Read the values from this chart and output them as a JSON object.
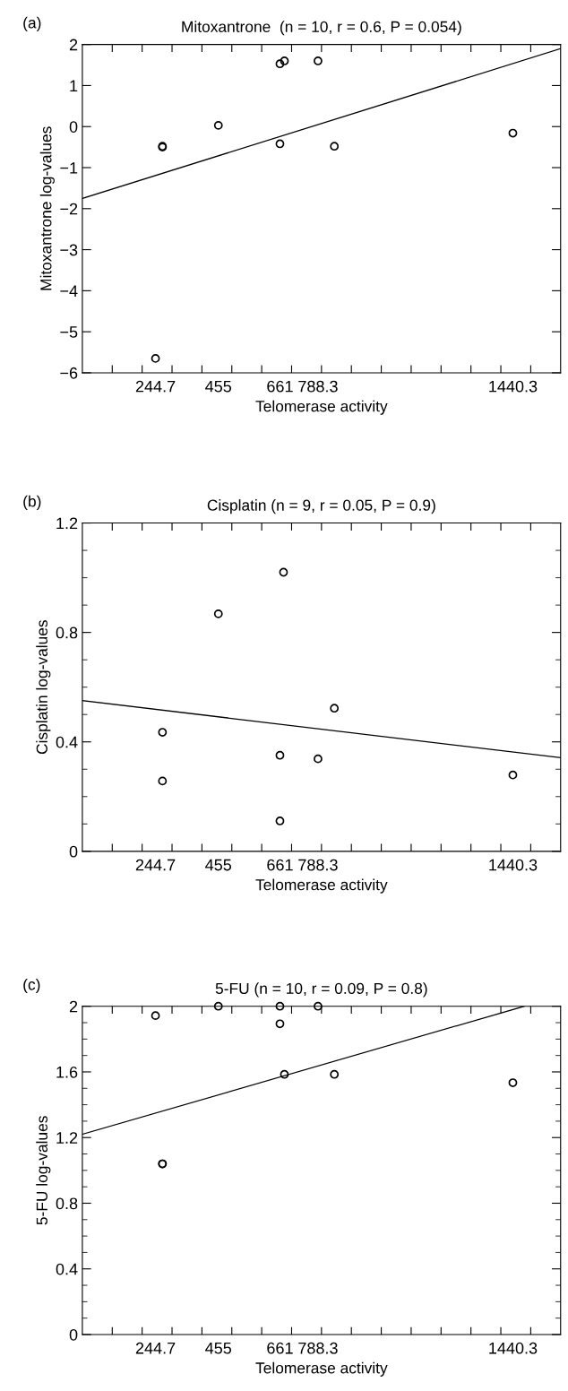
{
  "chart_data": [
    {
      "type": "scatter",
      "title": "Mitoxantrone  (n = 10, r = 0.6, P = 0.054)",
      "xlabel": "Telomerase activity",
      "ylabel": "Mitoxantrone log-values",
      "annotations": [
        "(a)"
      ],
      "xlim": [
        0,
        1600
      ],
      "ylim": [
        -6,
        2
      ],
      "xticks": [
        {
          "value": 100,
          "label": null
        },
        {
          "value": 200,
          "label": null
        },
        {
          "value": 300,
          "label": null
        },
        {
          "value": 400,
          "label": null
        },
        {
          "value": 500,
          "label": null
        },
        {
          "value": 600,
          "label": null
        },
        {
          "value": 700,
          "label": null
        },
        {
          "value": 800,
          "label": null
        },
        {
          "value": 900,
          "label": null
        },
        {
          "value": 1000,
          "label": null
        },
        {
          "value": 1100,
          "label": null
        },
        {
          "value": 1200,
          "label": null
        },
        {
          "value": 1300,
          "label": null
        },
        {
          "value": 1400,
          "label": null
        },
        {
          "value": 1500,
          "label": null
        },
        {
          "value": 244.7,
          "label": "244.7"
        },
        {
          "value": 455,
          "label": "455"
        },
        {
          "value": 661,
          "label": "661"
        },
        {
          "value": 788.3,
          "label": "788.3"
        },
        {
          "value": 1440.3,
          "label": "1440.3"
        }
      ],
      "yticks": [
        {
          "value": -6,
          "label": "−6"
        },
        {
          "value": -5,
          "label": "−5"
        },
        {
          "value": -4,
          "label": "−4"
        },
        {
          "value": -3,
          "label": "−3"
        },
        {
          "value": -2,
          "label": "−2"
        },
        {
          "value": -1,
          "label": "−1"
        },
        0,
        1,
        2
      ],
      "grid": false,
      "legend": false,
      "series": [
        {
          "marker": "circle",
          "color": "#000000",
          "x": [
            244.7,
            268,
            268,
            455,
            661,
            661,
            676,
            788.3,
            843,
            1440.3
          ],
          "values": [
            -5.65,
            -0.5,
            -0.48,
            0.03,
            -0.42,
            1.53,
            1.6,
            1.6,
            -0.48,
            -0.16
          ]
        },
        {
          "type": "line",
          "color": "#000000",
          "x": [
            0,
            1600
          ],
          "values": [
            -1.75,
            1.9
          ]
        }
      ]
    },
    {
      "type": "scatter",
      "title": "Cisplatin (n = 9, r = 0.05, P = 0.9)",
      "xlabel": "Telomerase activity",
      "ylabel": "Cisplatin log-values",
      "annotations": [
        "(b)"
      ],
      "xlim": [
        0,
        1600
      ],
      "ylim": [
        0,
        1.2
      ],
      "xticks": [
        {
          "value": 100,
          "label": null
        },
        {
          "value": 200,
          "label": null
        },
        {
          "value": 300,
          "label": null
        },
        {
          "value": 400,
          "label": null
        },
        {
          "value": 500,
          "label": null
        },
        {
          "value": 600,
          "label": null
        },
        {
          "value": 700,
          "label": null
        },
        {
          "value": 800,
          "label": null
        },
        {
          "value": 900,
          "label": null
        },
        {
          "value": 1000,
          "label": null
        },
        {
          "value": 1100,
          "label": null
        },
        {
          "value": 1200,
          "label": null
        },
        {
          "value": 1300,
          "label": null
        },
        {
          "value": 1400,
          "label": null
        },
        {
          "value": 1500,
          "label": null
        },
        {
          "value": 244.7,
          "label": "244.7"
        },
        {
          "value": 455,
          "label": "455"
        },
        {
          "value": 661,
          "label": "661"
        },
        {
          "value": 788.3,
          "label": "788.3"
        },
        {
          "value": 1440.3,
          "label": "1440.3"
        }
      ],
      "yticks": [
        0,
        {
          "value": 0.1,
          "label": null
        },
        {
          "value": 0.2,
          "label": null
        },
        {
          "value": 0.3,
          "label": null
        },
        0.4,
        {
          "value": 0.5,
          "label": null
        },
        {
          "value": 0.6,
          "label": null
        },
        {
          "value": 0.7,
          "label": null
        },
        0.8,
        {
          "value": 0.9,
          "label": null
        },
        {
          "value": 1.0,
          "label": null
        },
        {
          "value": 1.1,
          "label": null
        },
        1.2
      ],
      "grid": false,
      "legend": false,
      "series": [
        {
          "marker": "circle",
          "color": "#000000",
          "x": [
            268,
            268,
            455,
            673,
            661,
            661,
            788.3,
            843,
            1440.3
          ],
          "values": [
            0.435,
            0.257,
            0.868,
            1.02,
            0.351,
            0.111,
            0.338,
            0.523,
            0.279
          ]
        },
        {
          "type": "line",
          "color": "#000000",
          "x": [
            0,
            1600
          ],
          "values": [
            0.551,
            0.342
          ]
        }
      ]
    },
    {
      "type": "scatter",
      "title": "5-FU (n = 10, r = 0.09, P = 0.8)",
      "xlabel": "Telomerase activity",
      "ylabel": "5-FU log-values",
      "annotations": [
        "(c)"
      ],
      "xlim": [
        0,
        1600
      ],
      "ylim": [
        0,
        2
      ],
      "xticks": [
        {
          "value": 100,
          "label": null
        },
        {
          "value": 200,
          "label": null
        },
        {
          "value": 300,
          "label": null
        },
        {
          "value": 400,
          "label": null
        },
        {
          "value": 500,
          "label": null
        },
        {
          "value": 600,
          "label": null
        },
        {
          "value": 700,
          "label": null
        },
        {
          "value": 800,
          "label": null
        },
        {
          "value": 900,
          "label": null
        },
        {
          "value": 1000,
          "label": null
        },
        {
          "value": 1100,
          "label": null
        },
        {
          "value": 1200,
          "label": null
        },
        {
          "value": 1300,
          "label": null
        },
        {
          "value": 1400,
          "label": null
        },
        {
          "value": 1500,
          "label": null
        },
        {
          "value": 244.7,
          "label": "244.7"
        },
        {
          "value": 455,
          "label": "455"
        },
        {
          "value": 661,
          "label": "661"
        },
        {
          "value": 788.3,
          "label": "788.3"
        },
        {
          "value": 1440.3,
          "label": "1440.3"
        }
      ],
      "yticks": [
        0,
        {
          "value": 0.1,
          "label": null
        },
        {
          "value": 0.2,
          "label": null
        },
        {
          "value": 0.3,
          "label": null
        },
        0.4,
        {
          "value": 0.5,
          "label": null
        },
        {
          "value": 0.6,
          "label": null
        },
        {
          "value": 0.7,
          "label": null
        },
        0.8,
        {
          "value": 0.9,
          "label": null
        },
        {
          "value": 1.0,
          "label": null
        },
        {
          "value": 1.1,
          "label": null
        },
        1.2,
        {
          "value": 1.3,
          "label": null
        },
        {
          "value": 1.4,
          "label": null
        },
        {
          "value": 1.5,
          "label": null
        },
        1.6,
        {
          "value": 1.7,
          "label": null
        },
        {
          "value": 1.8,
          "label": null
        },
        {
          "value": 1.9,
          "label": null
        },
        2
      ],
      "grid": false,
      "legend": false,
      "series": [
        {
          "marker": "circle",
          "color": "#000000",
          "x": [
            244.7,
            268,
            268,
            455,
            661,
            661,
            676,
            788.3,
            843,
            1440.3
          ],
          "values": [
            1.943,
            1.04,
            1.04,
            2.0,
            2.0,
            1.893,
            1.585,
            2.0,
            1.585,
            1.534
          ]
        },
        {
          "type": "line",
          "color": "#000000",
          "x": [
            0,
            1478
          ],
          "values": [
            1.22,
            2.0
          ]
        }
      ]
    }
  ]
}
